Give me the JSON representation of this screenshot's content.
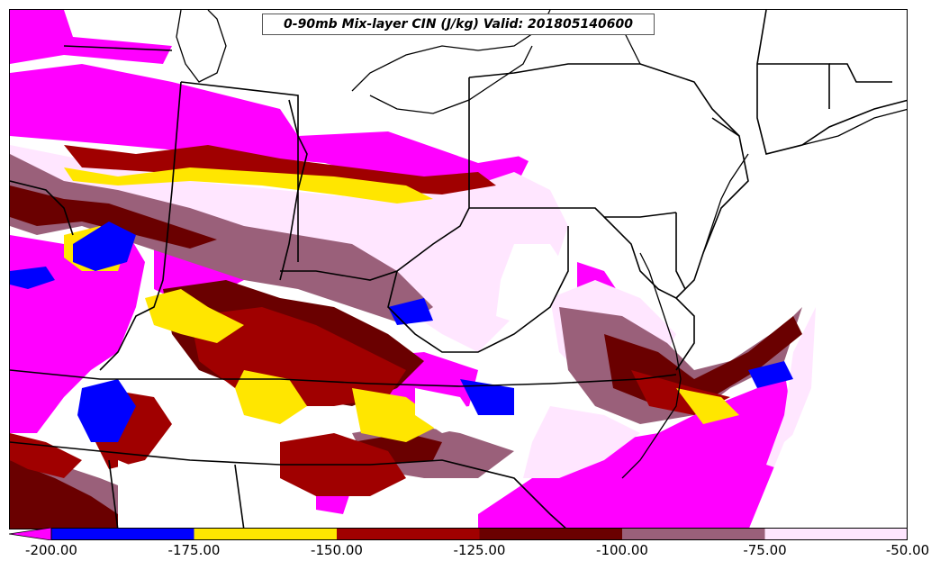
{
  "title": "0-90mb Mix-layer CIN (J/kg) Valid: 201805140600",
  "colors": {
    "land": "#ffffff",
    "boundary": "#000000"
  },
  "legend": {
    "ticks": [
      "-200.00",
      "-175.00",
      "-150.00",
      "-125.00",
      "-100.00",
      "-75.00",
      "-50.00"
    ],
    "bins": [
      {
        "min": -200,
        "max": -175,
        "color": "#0000ff"
      },
      {
        "min": -175,
        "max": -150,
        "color": "#ffe600"
      },
      {
        "min": -150,
        "max": -125,
        "color": "#a00000"
      },
      {
        "min": -125,
        "max": -100,
        "color": "#6a0000"
      },
      {
        "min": -100,
        "max": -75,
        "color": "#9a607a"
      },
      {
        "min": -75,
        "max": -50,
        "color": "#ffe6ff"
      }
    ],
    "under_color": "#ff00ff"
  }
}
